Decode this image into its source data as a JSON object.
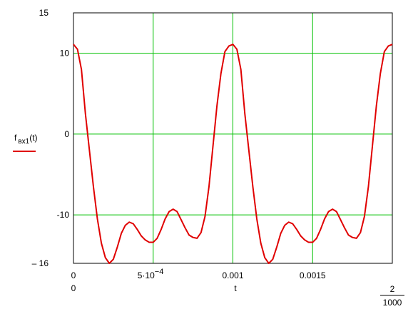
{
  "chart_data": {
    "type": "line",
    "x_label": "t",
    "xlim": [
      0,
      0.002
    ],
    "ylim": [
      -16,
      15
    ],
    "xlim_labels": {
      "low": "0",
      "high_numerator": "2",
      "high_denominator": "1000"
    },
    "xticks": [
      0,
      {
        "value": 0.0005,
        "label": "5·10",
        "exponent": "−4"
      },
      0.001,
      0.0015
    ],
    "yticks": [
      {
        "value": -16,
        "label": "– 16"
      },
      -10,
      0,
      10,
      15
    ],
    "grid": true,
    "grid_color": "#00c000",
    "x": [
      0,
      2.5e-05,
      5e-05,
      7.5e-05,
      0.0001,
      0.000125,
      0.00015,
      0.000175,
      0.0002,
      0.000225,
      0.00025,
      0.000275,
      0.0003,
      0.000325,
      0.00035,
      0.000375,
      0.0004,
      0.000425,
      0.00045,
      0.000475,
      0.0005,
      0.000525,
      0.00055,
      0.000575,
      0.0006,
      0.000625,
      0.00065,
      0.000675,
      0.0007,
      0.000725,
      0.00075,
      0.000775,
      0.0008,
      0.000825,
      0.00085,
      0.000875,
      0.0009,
      0.000925,
      0.00095,
      0.000975,
      0.001,
      0.001025,
      0.00105,
      0.001075,
      0.0011,
      0.001125,
      0.00115,
      0.001175,
      0.0012,
      0.001225,
      0.00125,
      0.001275,
      0.0013,
      0.001325,
      0.00135,
      0.001375,
      0.0014,
      0.001425,
      0.00145,
      0.001475,
      0.0015,
      0.001525,
      0.00155,
      0.001575,
      0.0016,
      0.001625,
      0.00165,
      0.001675,
      0.0017,
      0.001725,
      0.00175,
      0.001775,
      0.0018,
      0.001825,
      0.00185,
      0.001875,
      0.0019,
      0.001925,
      0.00195,
      0.001975,
      0.002
    ],
    "series": [
      {
        "name": "f",
        "name_subscript": "вх1",
        "name_suffix": "(t)",
        "color": "#e00000",
        "values": [
          11.1,
          10.5,
          8,
          2.5,
          -2,
          -6.5,
          -10.5,
          -13.5,
          -15.3,
          -16,
          -15.5,
          -14,
          -12.3,
          -11.3,
          -10.9,
          -11.1,
          -11.8,
          -12.6,
          -13.1,
          -13.4,
          -13.4,
          -12.9,
          -11.8,
          -10.5,
          -9.6,
          -9.3,
          -9.6,
          -10.6,
          -11.6,
          -12.5,
          -12.8,
          -12.9,
          -12.2,
          -10.2,
          -6.5,
          -1.5,
          3.5,
          7.5,
          10.2,
          10.9,
          11.1,
          10.5,
          8,
          2.5,
          -2,
          -6.5,
          -10.5,
          -13.5,
          -15.3,
          -16,
          -15.5,
          -14,
          -12.3,
          -11.3,
          -10.9,
          -11.1,
          -11.8,
          -12.6,
          -13.1,
          -13.4,
          -13.4,
          -12.9,
          -11.8,
          -10.5,
          -9.6,
          -9.3,
          -9.6,
          -10.6,
          -11.6,
          -12.5,
          -12.8,
          -12.9,
          -12.2,
          -10.2,
          -6.5,
          -1.5,
          3.5,
          7.5,
          10.2,
          10.9,
          11.1
        ]
      }
    ]
  }
}
